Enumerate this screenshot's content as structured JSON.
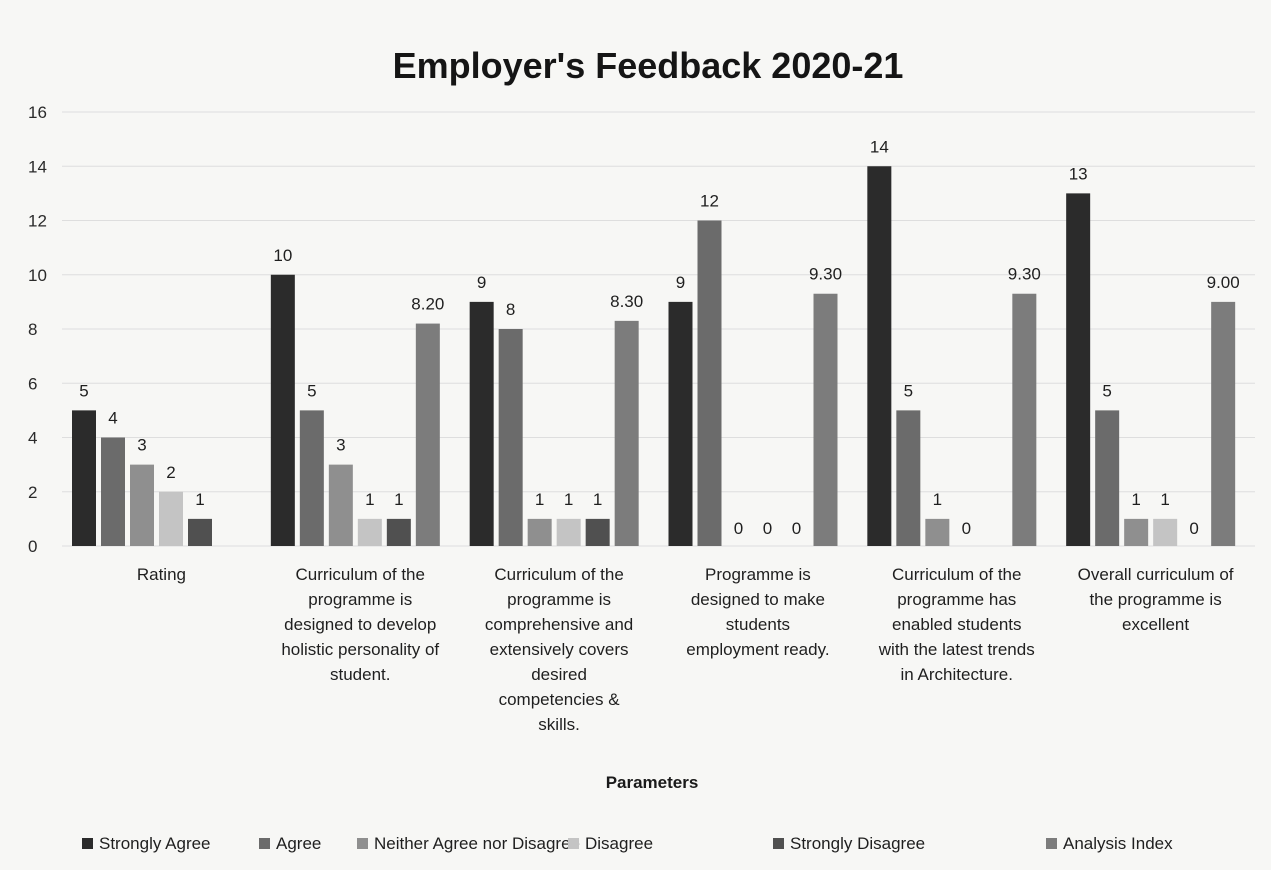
{
  "chart_data": {
    "type": "bar",
    "title": "Employer's Feedback 2020-21",
    "xlabel": "Parameters",
    "ylabel": "",
    "ylim": [
      0,
      16
    ],
    "yticks": [
      0,
      2,
      4,
      6,
      8,
      10,
      12,
      14,
      16
    ],
    "grid": true,
    "legend_position": "bottom",
    "categories": [
      [
        "Rating"
      ],
      [
        "Curriculum of the",
        "programme is",
        "designed to develop",
        "holistic personality of",
        "student."
      ],
      [
        "Curriculum of the",
        "programme is",
        "comprehensive and",
        "extensively covers",
        "desired",
        "competencies &",
        "skills."
      ],
      [
        "Programme is",
        "designed to make",
        "students",
        "employment ready."
      ],
      [
        "Curriculum of the",
        "programme has",
        "enabled students",
        "with the latest trends",
        "in Architecture."
      ],
      [
        "Overall curriculum of",
        "the programme is",
        "excellent"
      ]
    ],
    "series": [
      {
        "name": "Strongly Agree",
        "color": "#2b2b2b",
        "values": [
          5,
          10,
          9,
          9,
          14,
          13
        ],
        "labels": [
          "5",
          "10",
          "9",
          "9",
          "14",
          "13"
        ]
      },
      {
        "name": "Agree",
        "color": "#6b6b6b",
        "values": [
          4,
          5,
          8,
          12,
          5,
          5
        ],
        "labels": [
          "4",
          "5",
          "8",
          "12",
          "5",
          "5"
        ]
      },
      {
        "name": "Neither Agree nor Disagree",
        "color": "#8f8f8f",
        "values": [
          3,
          3,
          1,
          0,
          1,
          1
        ],
        "labels": [
          "3",
          "3",
          "1",
          "0",
          "1",
          "1"
        ]
      },
      {
        "name": "Disagree",
        "color": "#c4c4c4",
        "values": [
          2,
          1,
          1,
          0,
          0,
          1
        ],
        "labels": [
          "2",
          "1",
          "1",
          "0",
          "0",
          "1"
        ]
      },
      {
        "name": "Strongly Disagree",
        "color": "#505050",
        "values": [
          1,
          1,
          1,
          0,
          0,
          0
        ],
        "labels": [
          "1",
          "1",
          "1",
          "0",
          "",
          "0"
        ]
      },
      {
        "name": "Analysis Index",
        "color": "#7c7c7c",
        "values": [
          null,
          8.2,
          8.3,
          9.3,
          9.3,
          9.0
        ],
        "labels": [
          "",
          "8.20",
          "8.30",
          "9.30",
          "9.30",
          "9.00"
        ]
      }
    ]
  }
}
